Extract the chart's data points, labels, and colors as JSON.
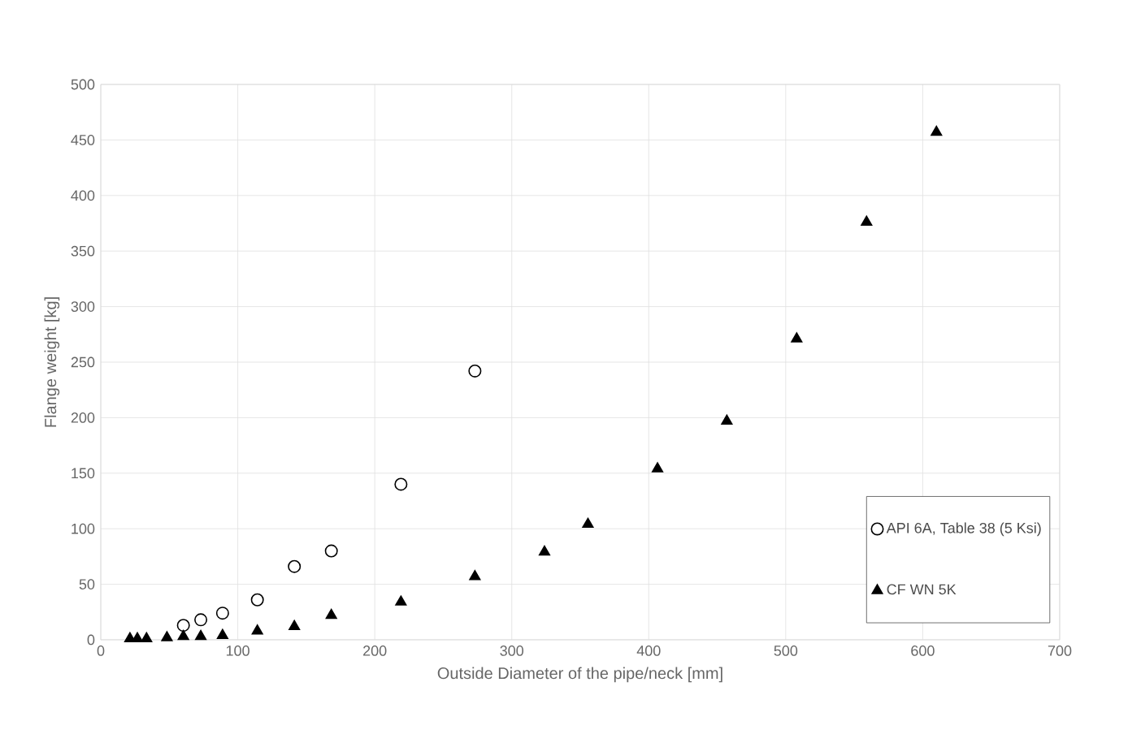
{
  "chart_data": {
    "type": "scatter",
    "xlabel": "Outside Diameter of the pipe/neck [mm]",
    "ylabel": "Flange weight [kg]",
    "xlim": [
      0,
      700
    ],
    "xticks": [
      0,
      100,
      200,
      300,
      400,
      500,
      600,
      700
    ],
    "ylim": [
      0,
      500
    ],
    "yticks": [
      0,
      50,
      100,
      150,
      200,
      250,
      300,
      350,
      400,
      450,
      500
    ],
    "grid": true,
    "legend": "bottom right",
    "series": [
      {
        "name": "API 6A, Table 38 (5 Ksi)",
        "color": "#000000",
        "marker": "circle",
        "x": [
          60.3,
          73,
          88.9,
          114.3,
          141.3,
          168.3,
          219.1,
          273.1
        ],
        "values": [
          13,
          18,
          24,
          36,
          66,
          80,
          140,
          242
        ]
      },
      {
        "name": "CF WN 5K",
        "color": "#000000",
        "marker": "triangle",
        "x": [
          21.3,
          26.7,
          33.4,
          48.3,
          60.3,
          73,
          88.9,
          114.3,
          141.3,
          168.3,
          219.1,
          273.1,
          323.9,
          355.6,
          406.4,
          457,
          508,
          559,
          610
        ],
        "values": [
          1,
          1,
          1,
          2,
          3,
          3,
          4,
          8,
          12,
          22,
          34,
          57,
          79,
          104,
          154,
          197,
          271,
          376,
          457
        ]
      }
    ]
  }
}
